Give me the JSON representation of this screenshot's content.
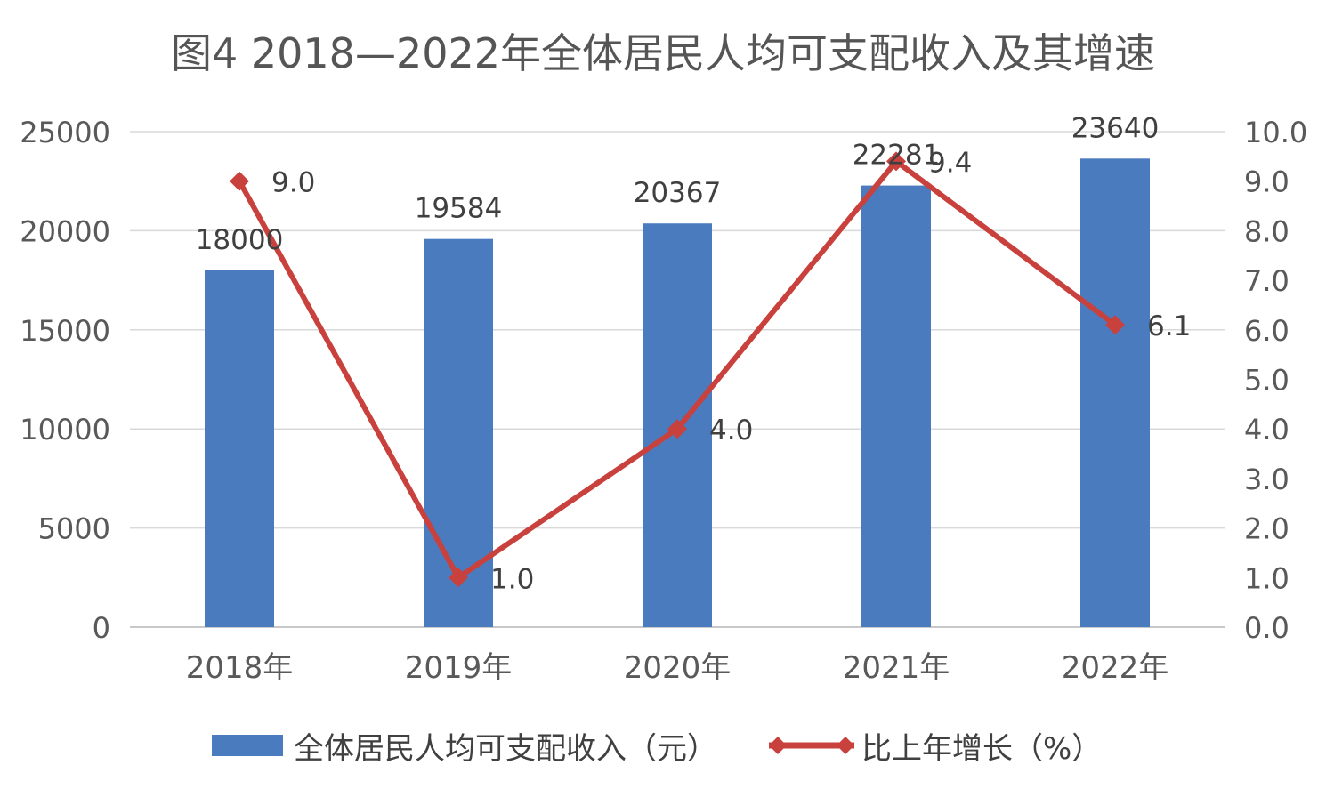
{
  "chart_data": {
    "type": "bar",
    "title": "图4 2018—2022年全体居民人均可支配收入及其增速",
    "categories": [
      "2018年",
      "2019年",
      "2020年",
      "2021年",
      "2022年"
    ],
    "series": [
      {
        "name": "全体居民人均可支配收入（元）",
        "type": "bar",
        "axis": "left",
        "color": "#4a7bbf",
        "values": [
          18000,
          19584,
          20367,
          22281,
          23640
        ],
        "labels": [
          "18000",
          "19584",
          "20367",
          "22281",
          "23640"
        ]
      },
      {
        "name": "比上年增长（%）",
        "type": "line",
        "axis": "right",
        "color": "#c9413d",
        "values": [
          9.0,
          1.0,
          4.0,
          9.4,
          6.1
        ],
        "labels": [
          "9.0",
          "1.0",
          "4.0",
          "9.4",
          "6.1"
        ]
      }
    ],
    "y_left": {
      "min": 0,
      "max": 25000,
      "ticks": [
        "0",
        "5000",
        "10000",
        "15000",
        "20000",
        "25000"
      ]
    },
    "y_right": {
      "min": 0,
      "max": 10,
      "ticks": [
        "0.0",
        "1.0",
        "2.0",
        "3.0",
        "4.0",
        "5.0",
        "6.0",
        "7.0",
        "8.0",
        "9.0",
        "10.0"
      ]
    },
    "grid": true,
    "legend_position": "bottom"
  }
}
